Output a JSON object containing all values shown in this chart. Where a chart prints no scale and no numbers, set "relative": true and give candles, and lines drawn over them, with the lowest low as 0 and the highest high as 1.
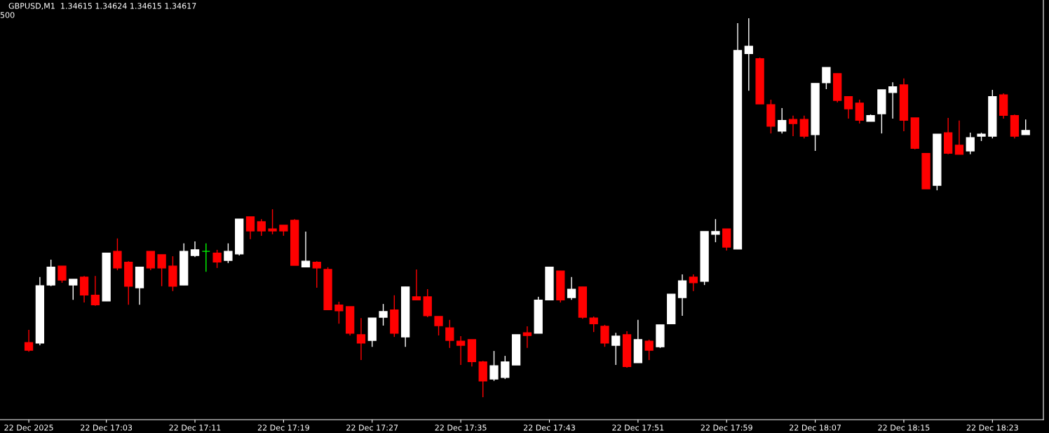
{
  "chart_data": {
    "type": "candlestick",
    "title": "GBPUSD,M1  1.34615 1.34624 1.34615 1.34617",
    "annotations": [
      "500"
    ],
    "relative": true,
    "grid": false,
    "categories": [
      "22 Dec 2025",
      null,
      null,
      null,
      null,
      null,
      null,
      "22 Dec 17:03",
      null,
      null,
      null,
      null,
      null,
      null,
      null,
      "22 Dec 17:11",
      null,
      null,
      null,
      null,
      null,
      null,
      null,
      "22 Dec 17:19",
      null,
      null,
      null,
      null,
      null,
      null,
      null,
      "22 Dec 17:27",
      null,
      null,
      null,
      null,
      null,
      null,
      null,
      "22 Dec 17:35",
      null,
      null,
      null,
      null,
      null,
      null,
      null,
      "22 Dec 17:43",
      null,
      null,
      null,
      null,
      null,
      null,
      null,
      "22 Dec 17:51",
      null,
      null,
      null,
      null,
      null,
      null,
      null,
      "22 Dec 17:59",
      null,
      null,
      null,
      null,
      null,
      null,
      null,
      "22 Dec 18:07",
      null,
      null,
      null,
      null,
      null,
      null,
      null,
      "22 Dec 18:15",
      null,
      null,
      null,
      null,
      null,
      null,
      null,
      "22 Dec 18:23",
      null,
      null,
      null
    ],
    "ohlc": [
      [
        0.144,
        0.178,
        0.12,
        0.124
      ],
      [
        0.143,
        0.317,
        0.137,
        0.294
      ],
      [
        0.296,
        0.363,
        0.293,
        0.343
      ],
      [
        0.346,
        0.346,
        0.302,
        0.309
      ],
      [
        0.296,
        0.311,
        0.257,
        0.311
      ],
      [
        0.317,
        0.32,
        0.25,
        0.27
      ],
      [
        0.269,
        0.32,
        0.241,
        0.244
      ],
      [
        0.254,
        0.38,
        0.254,
        0.38
      ],
      [
        0.385,
        0.419,
        0.335,
        0.341
      ],
      [
        0.356,
        0.359,
        0.244,
        0.293
      ],
      [
        0.289,
        0.343,
        0.244,
        0.343
      ],
      [
        0.385,
        0.385,
        0.335,
        0.341
      ],
      [
        0.376,
        0.376,
        0.293,
        0.341
      ],
      [
        0.346,
        0.372,
        0.28,
        0.293
      ],
      [
        0.296,
        0.406,
        0.296,
        0.385
      ],
      [
        0.374,
        0.411,
        0.37,
        0.389
      ],
      [
        0.385,
        0.406,
        0.331,
        0.385
      ],
      [
        0.38,
        0.389,
        0.341,
        0.357
      ],
      [
        0.361,
        0.406,
        0.354,
        0.385
      ],
      [
        0.378,
        0.47,
        0.374,
        0.47
      ],
      [
        0.476,
        0.476,
        0.417,
        0.439
      ],
      [
        0.463,
        0.47,
        0.426,
        0.439
      ],
      [
        0.444,
        0.496,
        0.43,
        0.439
      ],
      [
        0.454,
        0.454,
        0.426,
        0.439
      ],
      [
        0.467,
        0.47,
        0.348,
        0.348
      ],
      [
        0.344,
        0.437,
        0.344,
        0.359
      ],
      [
        0.356,
        0.359,
        0.289,
        0.341
      ],
      [
        0.337,
        0.343,
        0.231,
        0.231
      ],
      [
        0.243,
        0.252,
        0.194,
        0.228
      ],
      [
        0.239,
        0.239,
        0.163,
        0.169
      ],
      [
        0.165,
        0.209,
        0.098,
        0.143
      ],
      [
        0.15,
        0.209,
        0.133,
        0.209
      ],
      [
        0.211,
        0.246,
        0.189,
        0.226
      ],
      [
        0.23,
        0.269,
        0.159,
        0.169
      ],
      [
        0.159,
        0.291,
        0.133,
        0.291
      ],
      [
        0.265,
        0.337,
        0.257,
        0.257
      ],
      [
        0.265,
        0.285,
        0.211,
        0.215
      ],
      [
        0.213,
        0.213,
        0.163,
        0.189
      ],
      [
        0.183,
        0.204,
        0.13,
        0.15
      ],
      [
        0.148,
        0.161,
        0.085,
        0.137
      ],
      [
        0.152,
        0.152,
        0.081,
        0.094
      ],
      [
        0.093,
        0.096,
        0.0,
        0.043
      ],
      [
        0.048,
        0.122,
        0.043,
        0.083
      ],
      [
        0.052,
        0.109,
        0.048,
        0.093
      ],
      [
        0.085,
        0.165,
        0.085,
        0.165
      ],
      [
        0.17,
        0.187,
        0.13,
        0.163
      ],
      [
        0.169,
        0.265,
        0.169,
        0.256
      ],
      [
        0.257,
        0.343,
        0.257,
        0.343
      ],
      [
        0.333,
        0.333,
        0.25,
        0.257
      ],
      [
        0.263,
        0.317,
        0.257,
        0.285
      ],
      [
        0.291,
        0.291,
        0.207,
        0.211
      ],
      [
        0.209,
        0.213,
        0.172,
        0.194
      ],
      [
        0.187,
        0.191,
        0.133,
        0.143
      ],
      [
        0.137,
        0.17,
        0.085,
        0.161
      ],
      [
        0.165,
        0.174,
        0.078,
        0.081
      ],
      [
        0.091,
        0.204,
        0.091,
        0.152
      ],
      [
        0.148,
        0.152,
        0.098,
        0.124
      ],
      [
        0.133,
        0.191,
        0.13,
        0.191
      ],
      [
        0.194,
        0.272,
        0.194,
        0.272
      ],
      [
        0.263,
        0.324,
        0.215,
        0.307
      ],
      [
        0.317,
        0.324,
        0.28,
        0.302
      ],
      [
        0.306,
        0.437,
        0.296,
        0.437
      ],
      [
        0.43,
        0.47,
        0.409,
        0.437
      ],
      [
        0.444,
        0.444,
        0.387,
        0.396
      ],
      [
        0.391,
        0.987,
        0.391,
        0.915
      ],
      [
        0.907,
        1.0,
        0.809,
        0.926
      ],
      [
        0.893,
        0.896,
        0.774,
        0.774
      ],
      [
        0.772,
        0.785,
        0.696,
        0.715
      ],
      [
        0.702,
        0.763,
        0.696,
        0.73
      ],
      [
        0.733,
        0.743,
        0.689,
        0.722
      ],
      [
        0.733,
        0.743,
        0.683,
        0.689
      ],
      [
        0.693,
        0.828,
        0.65,
        0.828
      ],
      [
        0.83,
        0.87,
        0.813,
        0.87
      ],
      [
        0.854,
        0.854,
        0.778,
        0.783
      ],
      [
        0.793,
        0.793,
        0.735,
        0.761
      ],
      [
        0.776,
        0.785,
        0.722,
        0.731
      ],
      [
        0.728,
        0.746,
        0.728,
        0.743
      ],
      [
        0.748,
        0.811,
        0.696,
        0.811
      ],
      [
        0.804,
        0.831,
        0.735,
        0.819
      ],
      [
        0.824,
        0.841,
        0.702,
        0.731
      ],
      [
        0.737,
        0.737,
        0.654,
        0.657
      ],
      [
        0.643,
        0.643,
        0.55,
        0.55
      ],
      [
        0.559,
        0.694,
        0.546,
        0.694
      ],
      [
        0.698,
        0.737,
        0.641,
        0.644
      ],
      [
        0.665,
        0.73,
        0.641,
        0.641
      ],
      [
        0.65,
        0.698,
        0.641,
        0.685
      ],
      [
        0.689,
        0.698,
        0.676,
        0.694
      ],
      [
        0.689,
        0.811,
        0.683,
        0.793
      ],
      [
        0.798,
        0.802,
        0.735,
        0.744
      ],
      [
        0.743,
        0.746,
        0.683,
        0.689
      ],
      [
        0.693,
        0.733,
        0.693,
        0.704
      ]
    ],
    "colors": [
      "#ff0000",
      "#ffffff",
      "#ffffff",
      "#ff0000",
      "#ffffff",
      "#ff0000",
      "#ff0000",
      "#ffffff",
      "#ff0000",
      "#ff0000",
      "#ffffff",
      "#ff0000",
      "#ff0000",
      "#ff0000",
      "#ffffff",
      "#ffffff",
      "#00ff00",
      "#ff0000",
      "#ffffff",
      "#ffffff",
      "#ff0000",
      "#ff0000",
      "#ff0000",
      "#ff0000",
      "#ff0000",
      "#ffffff",
      "#ff0000",
      "#ff0000",
      "#ff0000",
      "#ff0000",
      "#ff0000",
      "#ffffff",
      "#ffffff",
      "#ff0000",
      "#ffffff",
      "#ff0000",
      "#ff0000",
      "#ff0000",
      "#ff0000",
      "#ff0000",
      "#ff0000",
      "#ff0000",
      "#ffffff",
      "#ffffff",
      "#ffffff",
      "#ff0000",
      "#ffffff",
      "#ffffff",
      "#ff0000",
      "#ffffff",
      "#ff0000",
      "#ff0000",
      "#ff0000",
      "#ffffff",
      "#ff0000",
      "#ffffff",
      "#ff0000",
      "#ffffff",
      "#ffffff",
      "#ffffff",
      "#ff0000",
      "#ffffff",
      "#ffffff",
      "#ff0000",
      "#ffffff",
      "#ffffff",
      "#ff0000",
      "#ff0000",
      "#ffffff",
      "#ff0000",
      "#ff0000",
      "#ffffff",
      "#ffffff",
      "#ff0000",
      "#ff0000",
      "#ff0000",
      "#ffffff",
      "#ffffff",
      "#ffffff",
      "#ff0000",
      "#ff0000",
      "#ff0000",
      "#ffffff",
      "#ff0000",
      "#ff0000",
      "#ffffff",
      "#ffffff",
      "#ffffff",
      "#ff0000",
      "#ff0000",
      "#ffffff"
    ]
  }
}
